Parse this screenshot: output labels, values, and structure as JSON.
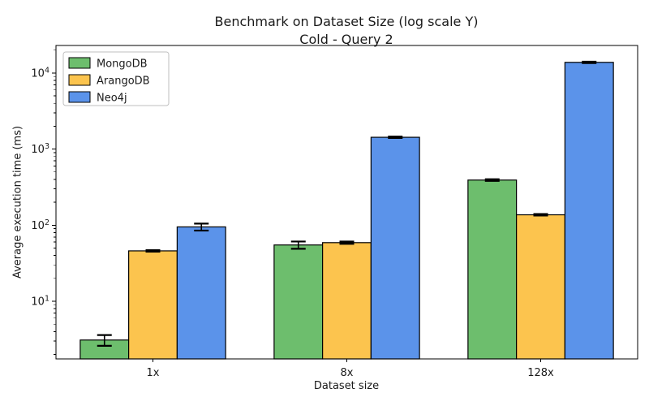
{
  "chart_data": {
    "type": "bar",
    "title": "Benchmark on Dataset Size (log scale Y)",
    "subtitle": "Cold - Query 2",
    "xlabel": "Dataset size",
    "ylabel": "Average execution time (ms)",
    "log_scale_y": true,
    "ylim": [
      1.75,
      23000
    ],
    "y_major_tick_exponents": [
      1,
      2,
      3,
      4
    ],
    "y_tick_base": "10",
    "categories": [
      "1x",
      "8x",
      "128x"
    ],
    "series": [
      {
        "name": "MongoDB",
        "color": "#6dbe6d",
        "values": [
          3.1,
          55,
          392
        ],
        "errors": [
          0.5,
          6,
          10
        ]
      },
      {
        "name": "ArangoDB",
        "color": "#fcc44e",
        "values": [
          46,
          59,
          137
        ],
        "errors": [
          1,
          2,
          3
        ]
      },
      {
        "name": "Neo4j",
        "color": "#5b93ea",
        "values": [
          95,
          1430,
          13800
        ],
        "errors": [
          10,
          30,
          300
        ]
      }
    ],
    "legend_position": "upper left",
    "bar_edge_color": "#000000",
    "error_bar_color": "#000000",
    "axis_color": "#000000",
    "background": "#ffffff"
  }
}
